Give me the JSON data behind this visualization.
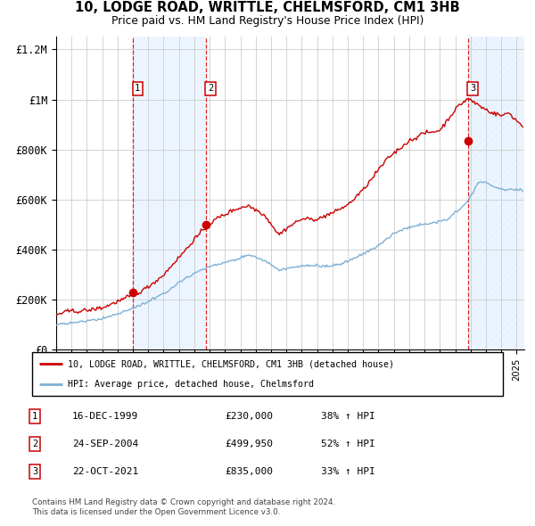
{
  "title": "10, LODGE ROAD, WRITTLE, CHELMSFORD, CM1 3HB",
  "subtitle": "Price paid vs. HM Land Registry's House Price Index (HPI)",
  "legend_line1": "10, LODGE ROAD, WRITTLE, CHELMSFORD, CM1 3HB (detached house)",
  "legend_line2": "HPI: Average price, detached house, Chelmsford",
  "footer1": "Contains HM Land Registry data © Crown copyright and database right 2024.",
  "footer2": "This data is licensed under the Open Government Licence v3.0.",
  "transactions": [
    {
      "num": 1,
      "date": "16-DEC-1999",
      "date_val": 2000.0,
      "price": 230000,
      "hpi_pct": "38%"
    },
    {
      "num": 2,
      "date": "24-SEP-2004",
      "date_val": 2004.75,
      "price": 499950,
      "hpi_pct": "52%"
    },
    {
      "num": 3,
      "date": "22-OCT-2021",
      "date_val": 2021.83,
      "price": 835000,
      "hpi_pct": "33%"
    }
  ],
  "property_color": "#cc0000",
  "hpi_color": "#7eb0d4",
  "background_shading": "#ddeeff",
  "grid_color": "#cccccc",
  "xmin": 1995.0,
  "xmax": 2025.5,
  "ymin": 0,
  "ymax": 1250000,
  "yticks": [
    0,
    200000,
    400000,
    600000,
    800000,
    1000000,
    1200000
  ],
  "ytick_labels": [
    "£0",
    "£200K",
    "£400K",
    "£600K",
    "£800K",
    "£1M",
    "£1.2M"
  ]
}
